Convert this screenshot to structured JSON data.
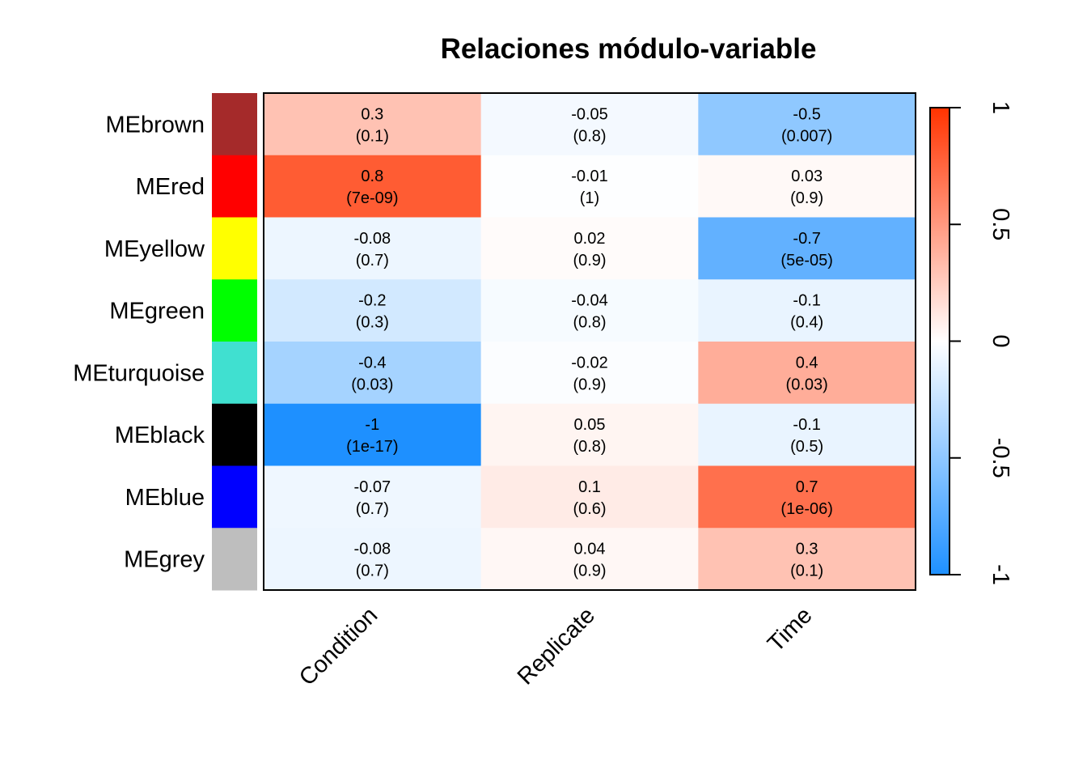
{
  "chart_data": {
    "type": "heatmap",
    "title": "Relaciones módulo-variable",
    "columns": [
      "Condition",
      "Replicate",
      "Time"
    ],
    "rows": [
      {
        "name": "MEbrown",
        "color": "#A52A2A",
        "cor": [
          0.3,
          -0.05,
          -0.5
        ],
        "cor_labels": [
          "0.3",
          "-0.05",
          "-0.5"
        ],
        "p_labels": [
          "(0.1)",
          "(0.8)",
          "(0.007)"
        ]
      },
      {
        "name": "MEred",
        "color": "#FF0000",
        "cor": [
          0.8,
          -0.01,
          0.03
        ],
        "cor_labels": [
          "0.8",
          "-0.01",
          "0.03"
        ],
        "p_labels": [
          "(7e-09)",
          "(1)",
          "(0.9)"
        ]
      },
      {
        "name": "MEyellow",
        "color": "#FFFF00",
        "cor": [
          -0.08,
          0.02,
          -0.7
        ],
        "cor_labels": [
          "-0.08",
          "0.02",
          "-0.7"
        ],
        "p_labels": [
          "(0.7)",
          "(0.9)",
          "(5e-05)"
        ]
      },
      {
        "name": "MEgreen",
        "color": "#00FF00",
        "cor": [
          -0.2,
          -0.04,
          -0.1
        ],
        "cor_labels": [
          "-0.2",
          "-0.04",
          "-0.1"
        ],
        "p_labels": [
          "(0.3)",
          "(0.8)",
          "(0.4)"
        ]
      },
      {
        "name": "MEturquoise",
        "color": "#40E0D0",
        "cor": [
          -0.4,
          -0.02,
          0.4
        ],
        "cor_labels": [
          "-0.4",
          "-0.02",
          "0.4"
        ],
        "p_labels": [
          "(0.03)",
          "(0.9)",
          "(0.03)"
        ]
      },
      {
        "name": "MEblack",
        "color": "#000000",
        "cor": [
          -1,
          0.05,
          -0.1
        ],
        "cor_labels": [
          "-1",
          "0.05",
          "-0.1"
        ],
        "p_labels": [
          "(1e-17)",
          "(0.8)",
          "(0.5)"
        ]
      },
      {
        "name": "MEblue",
        "color": "#0000FF",
        "cor": [
          -0.07,
          0.1,
          0.7
        ],
        "cor_labels": [
          "-0.07",
          "0.1",
          "0.7"
        ],
        "p_labels": [
          "(0.7)",
          "(0.6)",
          "(1e-06)"
        ]
      },
      {
        "name": "MEgrey",
        "color": "#BEBEBE",
        "cor": [
          -0.08,
          0.04,
          0.3
        ],
        "cor_labels": [
          "-0.08",
          "0.04",
          "0.3"
        ],
        "p_labels": [
          "(0.7)",
          "(0.9)",
          "(0.1)"
        ]
      }
    ],
    "colorbar": {
      "range": [
        -1,
        1
      ],
      "ticks": [
        -1,
        -0.5,
        0,
        0.5,
        1
      ],
      "tick_labels": [
        "-1",
        "-0.5",
        "0",
        "0.5",
        "1"
      ],
      "low_color": "#1E90FF",
      "mid_color": "#FFFFFF",
      "high_color": "#FF3300"
    },
    "legend_position": "right"
  }
}
